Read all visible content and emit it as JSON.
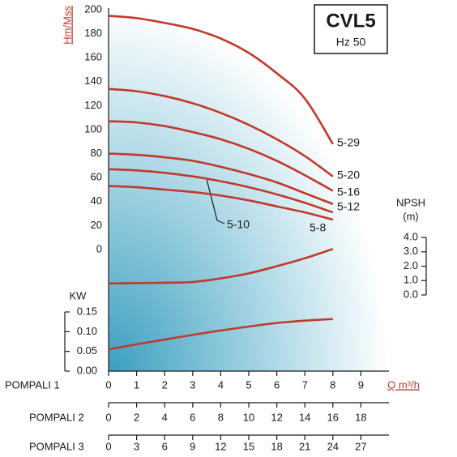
{
  "chart_data": {
    "type": "line",
    "title": "CVL5",
    "subtitle": "Hz 50",
    "ylabel": "Hm/Mss",
    "xlabel": "Q m³/h",
    "kw_label": "KW",
    "npsh_label": "NPSH",
    "npsh_unit": "(m)",
    "row_labels": [
      "POMPALI 1",
      "POMPALI 2",
      "POMPALI 3"
    ],
    "x": [
      0,
      1,
      2,
      3,
      4,
      5,
      6,
      7,
      8
    ],
    "xlim": [
      0,
      10
    ],
    "xticks": [
      0,
      1,
      2,
      3,
      4,
      5,
      6,
      7,
      8,
      9
    ],
    "x2lim": [
      0,
      20
    ],
    "x2ticks": [
      0,
      2,
      4,
      6,
      8,
      10,
      12,
      14,
      16,
      18
    ],
    "x3lim": [
      0,
      30
    ],
    "x3ticks": [
      0,
      3,
      6,
      9,
      12,
      15,
      18,
      21,
      24,
      27
    ],
    "ylim": [
      0,
      200
    ],
    "yticks": [
      0,
      20,
      40,
      60,
      80,
      100,
      120,
      140,
      160,
      180,
      200
    ],
    "kw_lim": [
      0,
      0.15
    ],
    "kw_ticks": [
      {
        "value": 0,
        "label": "0.00"
      },
      0.05,
      {
        "value": 0.1,
        "label": "0.10"
      },
      0.15
    ],
    "npsh_lim": [
      0,
      4
    ],
    "npsh_ticks": [
      {
        "value": 0,
        "label": "0.0"
      },
      {
        "value": 1,
        "label": "1.0"
      },
      {
        "value": 2,
        "label": "2.0"
      },
      {
        "value": 3,
        "label": "3.0"
      },
      {
        "value": 4,
        "label": "4.0"
      }
    ],
    "series": [
      {
        "name": "5-29",
        "color": "#c0392b",
        "values": [
          195,
          193,
          189,
          184,
          176,
          164,
          147,
          126,
          88
        ]
      },
      {
        "name": "5-20",
        "color": "#c0392b",
        "values": [
          134,
          132,
          128,
          122,
          114,
          104,
          92,
          78,
          61
        ]
      },
      {
        "name": "5-16",
        "color": "#c0392b",
        "values": [
          107,
          106,
          103,
          98,
          92,
          84,
          74,
          62,
          49
        ]
      },
      {
        "name": "5-12",
        "color": "#c0392b",
        "values": [
          80,
          79,
          77,
          74,
          69,
          63,
          56,
          47,
          38
        ]
      },
      {
        "name": "5-10",
        "color": "#c0392b",
        "values": [
          67,
          66,
          64,
          61,
          57,
          52,
          46,
          39,
          31
        ]
      },
      {
        "name": "5-8",
        "color": "#c0392b",
        "values": [
          53,
          52,
          50,
          48,
          45,
          41,
          36,
          31,
          25
        ]
      },
      {
        "axis": "npsh",
        "color": "#c0392b",
        "values": [
          0.8,
          0.82,
          0.85,
          0.9,
          1.15,
          1.5,
          2.0,
          2.55,
          3.2
        ]
      },
      {
        "axis": "kw",
        "color": "#c0392b",
        "values": [
          0.055,
          0.068,
          0.08,
          0.092,
          0.103,
          0.113,
          0.122,
          0.128,
          0.132
        ]
      }
    ]
  }
}
